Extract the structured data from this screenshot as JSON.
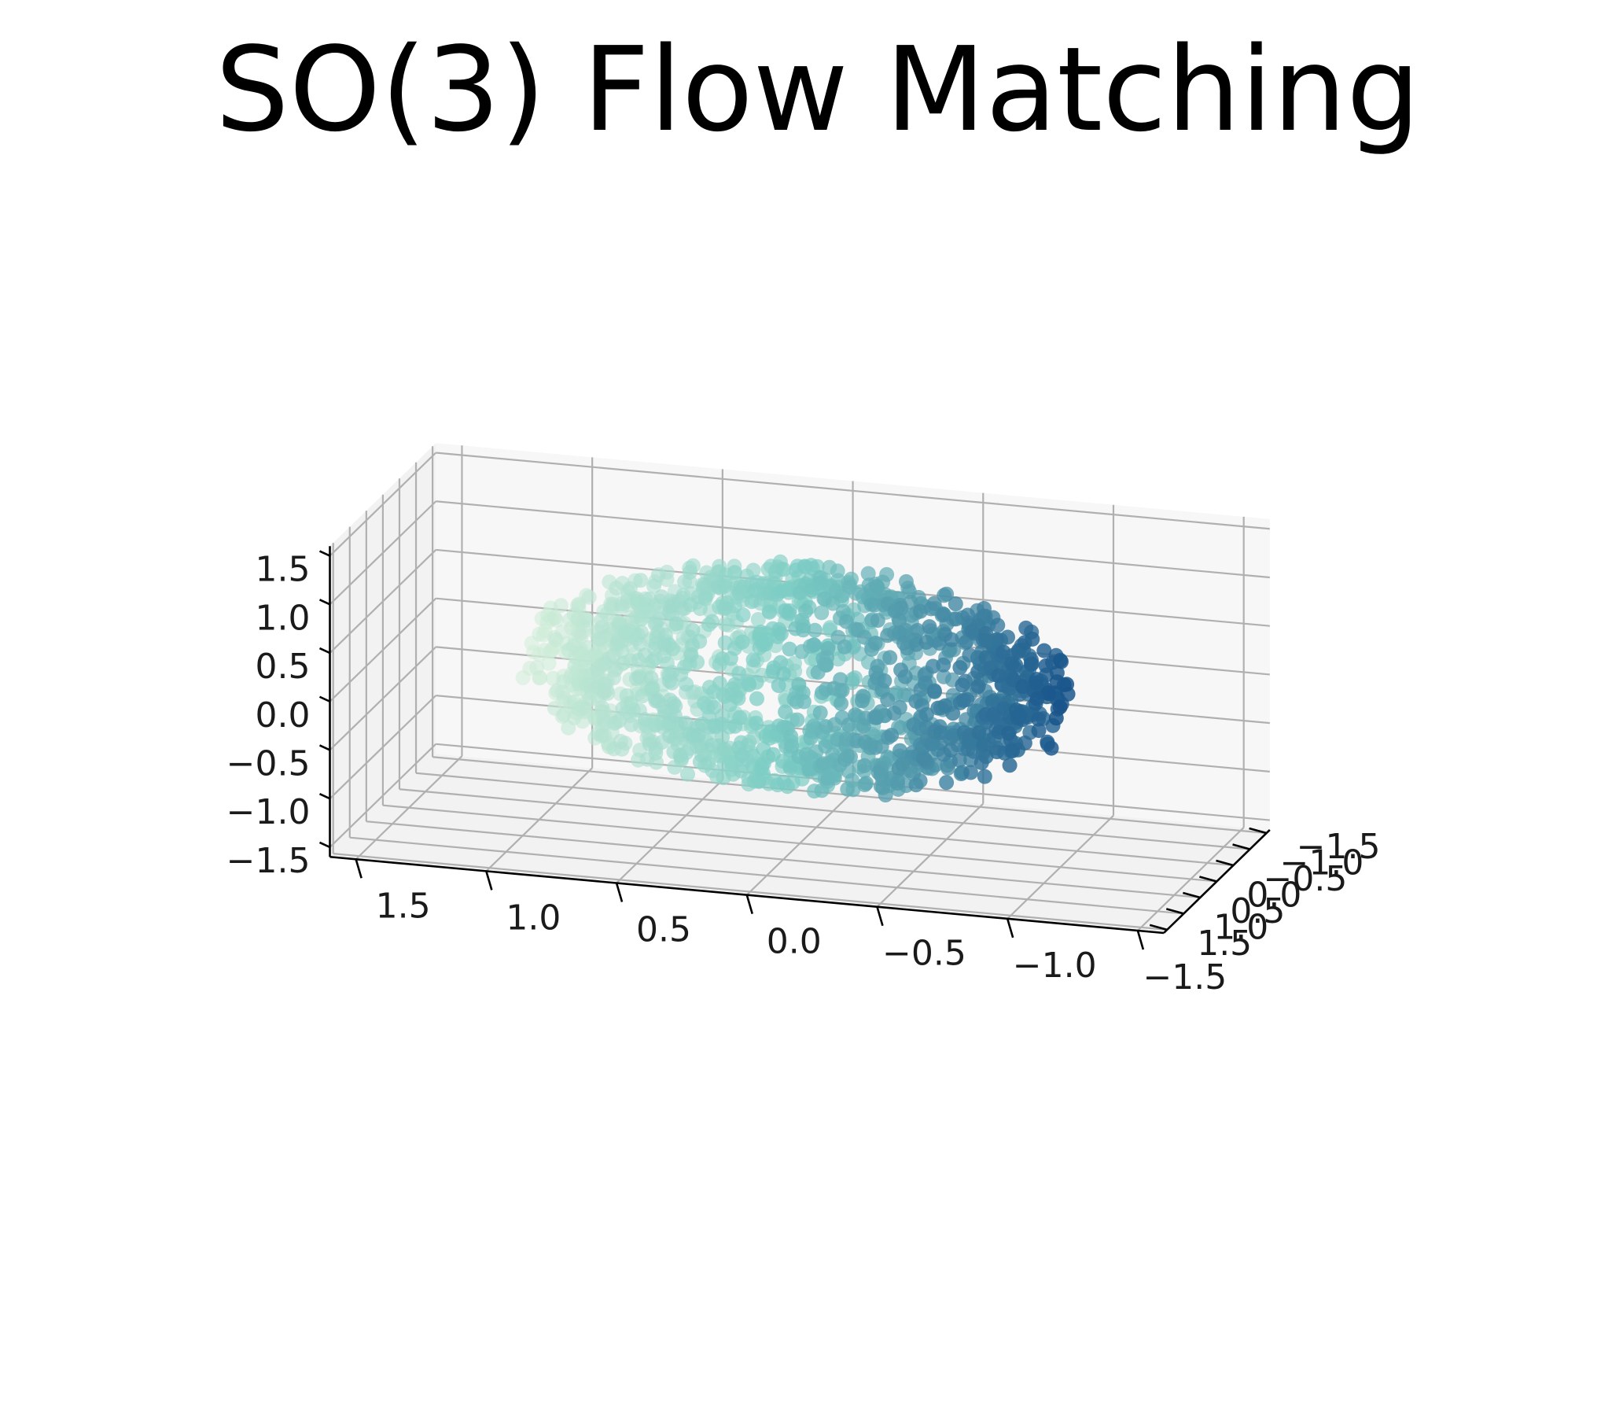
{
  "chart_data": {
    "type": "scatter",
    "projection": "3d",
    "title": "SO(3) Flow Matching",
    "xlabel": "",
    "ylabel": "",
    "zlabel": "",
    "xlim": [
      -1.6,
      1.6
    ],
    "ylim": [
      -1.6,
      1.6
    ],
    "zlim": [
      -1.6,
      1.6
    ],
    "x_ticks": [
      "−1.5",
      "−1.0",
      "−0.5",
      "0.0",
      "0.5",
      "1.0",
      "1.5"
    ],
    "y_ticks": [
      "−1.5",
      "−1.0",
      "−0.5",
      "0.0",
      "0.5",
      "1.0",
      "1.5"
    ],
    "z_ticks": [
      "−1.5",
      "−1.0",
      "−0.5",
      "0.0",
      "0.5",
      "1.0",
      "1.5"
    ],
    "grid": true,
    "colormap": "GnBu",
    "color_low": "#e0f3db",
    "color_mid": "#7bccc4",
    "color_high": "#084081",
    "series": [
      {
        "note": "cloud of points lying near a distorted spherical shell, colored by position along the view direction",
        "count": 1500,
        "center": [
          0.0,
          0.0,
          0.1
        ],
        "radius": 1.0,
        "values": [
          [
            0.0,
            -0.9,
            0.3
          ],
          [
            0.3,
            -0.9,
            0.2
          ],
          [
            -0.3,
            -0.85,
            0.35
          ],
          [
            0.6,
            -0.7,
            0.1
          ],
          [
            0.9,
            -0.3,
            0.0
          ],
          [
            1.0,
            0.0,
            0.1
          ],
          [
            0.8,
            0.5,
            0.2
          ],
          [
            0.4,
            0.8,
            0.3
          ],
          [
            -0.2,
            0.9,
            0.3
          ],
          [
            -0.7,
            0.6,
            0.4
          ],
          [
            -0.9,
            0.1,
            0.5
          ],
          [
            -0.8,
            -0.4,
            0.5
          ],
          [
            -0.5,
            -0.7,
            0.6
          ],
          [
            0.0,
            -0.5,
            0.9
          ],
          [
            0.3,
            0.1,
            1.0
          ],
          [
            -0.3,
            0.2,
            1.0
          ],
          [
            0.0,
            0.0,
            -0.8
          ],
          [
            0.4,
            -0.4,
            -0.7
          ],
          [
            -0.4,
            0.4,
            -0.7
          ],
          [
            0.5,
            0.6,
            -0.5
          ],
          [
            -0.6,
            -0.5,
            -0.5
          ],
          [
            0.7,
            -0.6,
            0.5
          ],
          [
            -0.4,
            -0.6,
            -0.2
          ],
          [
            0.2,
            0.7,
            -0.6
          ]
        ]
      }
    ]
  }
}
